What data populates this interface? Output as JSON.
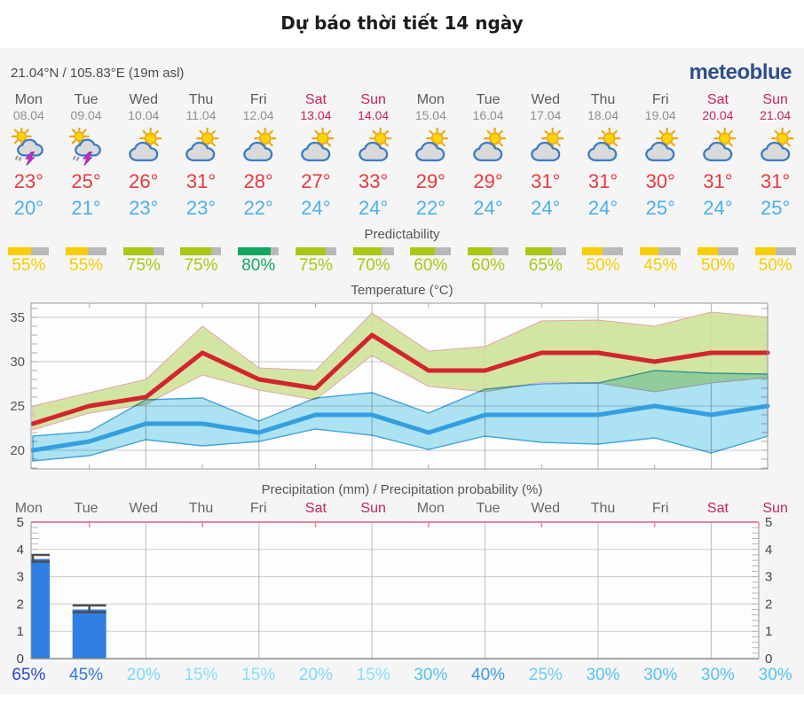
{
  "page_title": "Dự báo thời tiết 14 ngày",
  "header": {
    "coordinates": "21.04°N / 105.83°E (19m asl)",
    "logo": "meteoblue"
  },
  "labels": {
    "predictability": "Predictability",
    "temperature_title": "Temperature (°C)",
    "precipitation_title": "Precipitation (mm) / Precipitation probability (%)"
  },
  "colors": {
    "weekend": "#c62360",
    "tmax_text": "#e8383f",
    "tmin_text": "#4ab1ec",
    "widget_bg": "#f5f5f5",
    "bar_gray": "#b9b9b9"
  },
  "days": [
    {
      "name": "Mon",
      "date": "08.04",
      "weekend": false,
      "icon": "thunderstorm",
      "tmax": "23°",
      "tmin": "20°",
      "predictability": 55,
      "pred_color": "#f7ce00",
      "precip_prob": "65%",
      "prob_color": "#2a49c5"
    },
    {
      "name": "Tue",
      "date": "09.04",
      "weekend": false,
      "icon": "thunderstorm",
      "tmax": "25°",
      "tmin": "21°",
      "predictability": 55,
      "pred_color": "#f7ce00",
      "precip_prob": "45%",
      "prob_color": "#3277d4"
    },
    {
      "name": "Wed",
      "date": "10.04",
      "weekend": false,
      "icon": "partly-cloudy",
      "tmax": "26°",
      "tmin": "23°",
      "predictability": 75,
      "pred_color": "#a8c814",
      "precip_prob": "20%",
      "prob_color": "#7cd8f7"
    },
    {
      "name": "Thu",
      "date": "11.04",
      "weekend": false,
      "icon": "partly-cloudy",
      "tmax": "31°",
      "tmin": "23°",
      "predictability": 75,
      "pred_color": "#a8c814",
      "precip_prob": "15%",
      "prob_color": "#8bdef8"
    },
    {
      "name": "Fri",
      "date": "12.04",
      "weekend": false,
      "icon": "partly-cloudy",
      "tmax": "28°",
      "tmin": "22°",
      "predictability": 80,
      "pred_color": "#13a75f",
      "precip_prob": "15%",
      "prob_color": "#8bdef8"
    },
    {
      "name": "Sat",
      "date": "13.04",
      "weekend": true,
      "icon": "partly-cloudy",
      "tmax": "27°",
      "tmin": "24°",
      "predictability": 75,
      "pred_color": "#a8c814",
      "precip_prob": "20%",
      "prob_color": "#7cd8f7"
    },
    {
      "name": "Sun",
      "date": "14.04",
      "weekend": true,
      "icon": "partly-cloudy",
      "tmax": "33°",
      "tmin": "24°",
      "predictability": 70,
      "pred_color": "#a8c814",
      "precip_prob": "15%",
      "prob_color": "#8bdef8"
    },
    {
      "name": "Mon",
      "date": "15.04",
      "weekend": false,
      "icon": "partly-cloudy",
      "tmax": "29°",
      "tmin": "22°",
      "predictability": 60,
      "pred_color": "#a8c814",
      "precip_prob": "30%",
      "prob_color": "#54c3f1"
    },
    {
      "name": "Tue",
      "date": "16.04",
      "weekend": false,
      "icon": "partly-cloudy",
      "tmax": "29°",
      "tmin": "24°",
      "predictability": 60,
      "pred_color": "#a8c814",
      "precip_prob": "40%",
      "prob_color": "#3e98e5"
    },
    {
      "name": "Wed",
      "date": "17.04",
      "weekend": false,
      "icon": "partly-cloudy",
      "tmax": "31°",
      "tmin": "24°",
      "predictability": 65,
      "pred_color": "#a8c814",
      "precip_prob": "25%",
      "prob_color": "#68cef4"
    },
    {
      "name": "Thu",
      "date": "18.04",
      "weekend": false,
      "icon": "partly-cloudy",
      "tmax": "31°",
      "tmin": "24°",
      "predictability": 50,
      "pred_color": "#f7ce00",
      "precip_prob": "30%",
      "prob_color": "#54c3f1"
    },
    {
      "name": "Fri",
      "date": "19.04",
      "weekend": false,
      "icon": "partly-cloudy",
      "tmax": "30°",
      "tmin": "25°",
      "predictability": 45,
      "pred_color": "#f7ce00",
      "precip_prob": "30%",
      "prob_color": "#54c3f1"
    },
    {
      "name": "Sat",
      "date": "20.04",
      "weekend": true,
      "icon": "partly-cloudy",
      "tmax": "31°",
      "tmin": "24°",
      "predictability": 50,
      "pred_color": "#f7ce00",
      "precip_prob": "30%",
      "prob_color": "#54c3f1"
    },
    {
      "name": "Sun",
      "date": "21.04",
      "weekend": true,
      "icon": "partly-cloudy",
      "tmax": "31°",
      "tmin": "25°",
      "predictability": 50,
      "pred_color": "#f7ce00",
      "precip_prob": "30%",
      "prob_color": "#54c3f1"
    }
  ],
  "chart_data": [
    {
      "type": "line",
      "title": "Temperature (°C)",
      "categories": [
        "Mon 08.04",
        "Tue 09.04",
        "Wed 10.04",
        "Thu 11.04",
        "Fri 12.04",
        "Sat 13.04",
        "Sun 14.04",
        "Mon 15.04",
        "Tue 16.04",
        "Wed 17.04",
        "Thu 18.04",
        "Fri 19.04",
        "Sat 20.04",
        "Sun 21.04"
      ],
      "ylim": [
        17.9,
        36.6
      ],
      "yticks": [
        20,
        25,
        30,
        35
      ],
      "grid_day_indices": [
        2,
        4,
        6,
        8,
        10,
        12
      ],
      "series": [
        {
          "name": "max-temperature",
          "color": "#d2252e",
          "values": [
            23,
            25,
            26,
            31,
            28,
            27,
            33,
            29,
            29,
            31,
            31,
            30,
            31,
            31
          ]
        },
        {
          "name": "min-temperature",
          "color": "#339fe0",
          "values": [
            20,
            21,
            23,
            23,
            22,
            24,
            24,
            22,
            24,
            24,
            24,
            25,
            24,
            25
          ]
        }
      ],
      "bands": [
        {
          "name": "max-range",
          "fill": "#cfe39a",
          "stroke": "#e59aa2",
          "upper": [
            25,
            26.5,
            28,
            34,
            29.3,
            29,
            35.5,
            31.2,
            31.7,
            34.6,
            34.7,
            34,
            35.6,
            35
          ],
          "lower": [
            22.3,
            24.2,
            25.2,
            28.5,
            26.8,
            25.7,
            30.7,
            27.2,
            26.6,
            27.7,
            27.6,
            26.6,
            27.6,
            28.2
          ]
        },
        {
          "name": "min-range",
          "fill": "#aee4f4",
          "stroke": "#45a5da",
          "upper": [
            21.6,
            22.1,
            25.7,
            25.9,
            23.3,
            25.9,
            26.5,
            24.2,
            26.9,
            27.5,
            27.6,
            29,
            28.7,
            28.6
          ],
          "lower": [
            18.8,
            19.4,
            21.2,
            20.5,
            21,
            22.4,
            21.7,
            20.1,
            21.6,
            20.9,
            20.7,
            21.4,
            19.7,
            21.6
          ]
        }
      ]
    },
    {
      "type": "bar",
      "title": "Precipitation (mm) / Precipitation probability (%)",
      "categories": [
        "Mon",
        "Tue",
        "Wed",
        "Thu",
        "Fri",
        "Sat",
        "Sun",
        "Mon",
        "Tue",
        "Wed",
        "Thu",
        "Fri",
        "Sat",
        "Sun"
      ],
      "weekend_indices": [
        5,
        6,
        12,
        13
      ],
      "values": [
        3.65,
        1.8,
        0,
        0,
        0,
        0,
        0,
        0,
        0,
        0,
        0,
        0,
        0,
        0
      ],
      "whiskers": [
        {
          "index": 0,
          "low": 3.55,
          "high": 3.8
        },
        {
          "index": 1,
          "low": 1.7,
          "high": 1.95
        }
      ],
      "probabilities": [
        "65%",
        "45%",
        "20%",
        "15%",
        "15%",
        "20%",
        "15%",
        "30%",
        "40%",
        "25%",
        "30%",
        "30%",
        "30%",
        "30%"
      ],
      "ylim": [
        0,
        5
      ],
      "yticks": [
        0,
        1,
        2,
        3,
        4,
        5
      ],
      "bar_color": "#2f7fe3",
      "whisker_color": "#4d4d4d",
      "top_border_color": "#e8849c",
      "grid_day_indices": [
        2,
        4,
        6,
        8,
        10,
        12
      ]
    }
  ]
}
